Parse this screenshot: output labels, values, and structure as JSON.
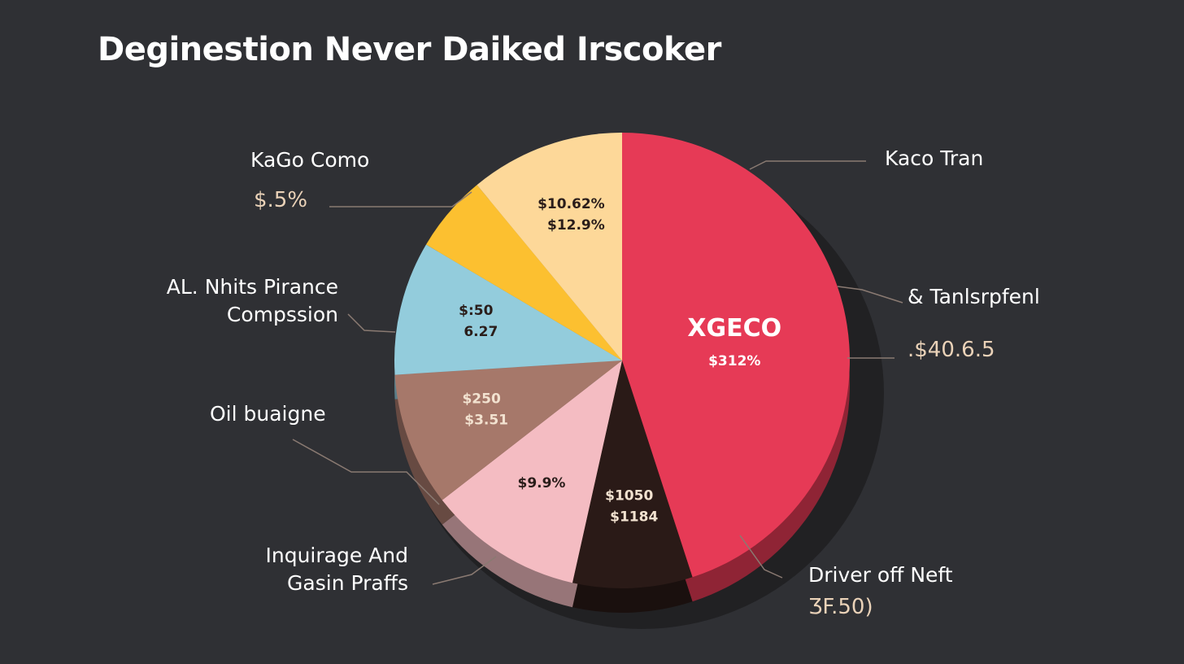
{
  "chart_data": {
    "type": "pie",
    "title": "Deginestion Never Daiked Irscoker",
    "slices": [
      {
        "name": "Kaco Tran",
        "value": 45.0,
        "color": "#e63a56",
        "inner_labels": [
          "XGECO",
          "$312%"
        ],
        "outer_value": ""
      },
      {
        "name": "Driver off Neft",
        "value": 8.5,
        "color": "#2a1a17",
        "inner_labels": [
          "$1050",
          "$1184"
        ],
        "outer_value": "ƷF.50)"
      },
      {
        "name": "Inquirage And Gasin Praffs",
        "value": 11.0,
        "color": "#f4bcc2",
        "inner_labels": [
          "$9.9%"
        ],
        "outer_value": ""
      },
      {
        "name": "Oil buaigne",
        "value": 9.5,
        "color": "#a6786a",
        "inner_labels": [
          "$250",
          "$3.51"
        ],
        "outer_value": ""
      },
      {
        "name": "AL. Nhits Pirance Compssion",
        "value": 9.5,
        "color": "#93ccdc",
        "inner_labels": [
          "$:50",
          "6.27"
        ],
        "outer_value": ""
      },
      {
        "name": "KaGo Como",
        "value": 5.5,
        "color": "#fcc030",
        "inner_labels": [],
        "outer_value": "$.5%"
      },
      {
        "name": "",
        "value": 11.0,
        "color": "#fdd899",
        "inner_labels": [
          "$10.62%",
          "$12.9%"
        ],
        "outer_value": ""
      }
    ],
    "extra_labels": [
      {
        "name": "& Tanlsrpfenl",
        "outer_value": ".$40.6.5"
      }
    ],
    "legend": "none"
  }
}
